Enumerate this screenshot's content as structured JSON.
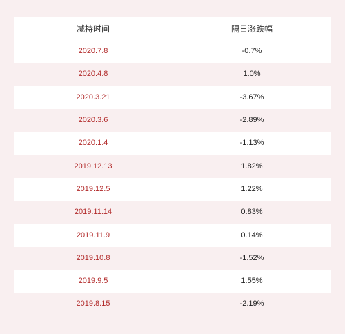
{
  "table": {
    "headers": {
      "date": "减持时间",
      "change": "隔日涨跌幅"
    },
    "rows": [
      {
        "date": "2020.7.8",
        "change": "-0.7%"
      },
      {
        "date": "2020.4.8",
        "change": "1.0%"
      },
      {
        "date": "2020.3.21",
        "change": "-3.67%"
      },
      {
        "date": "2020.3.6",
        "change": "-2.89%"
      },
      {
        "date": "2020.1.4",
        "change": "-1.13%"
      },
      {
        "date": "2019.12.13",
        "change": "1.82%"
      },
      {
        "date": "2019.12.5",
        "change": "1.22%"
      },
      {
        "date": "2019.11.14",
        "change": "0.83%"
      },
      {
        "date": "2019.11.9",
        "change": "0.14%"
      },
      {
        "date": "2019.10.8",
        "change": "-1.52%"
      },
      {
        "date": "2019.9.5",
        "change": "1.55%"
      },
      {
        "date": "2019.8.15",
        "change": "-2.19%"
      }
    ]
  },
  "colors": {
    "background": "#f9eff0",
    "row_white": "#ffffff",
    "date_text": "#b22a2a",
    "value_text": "#222222"
  }
}
